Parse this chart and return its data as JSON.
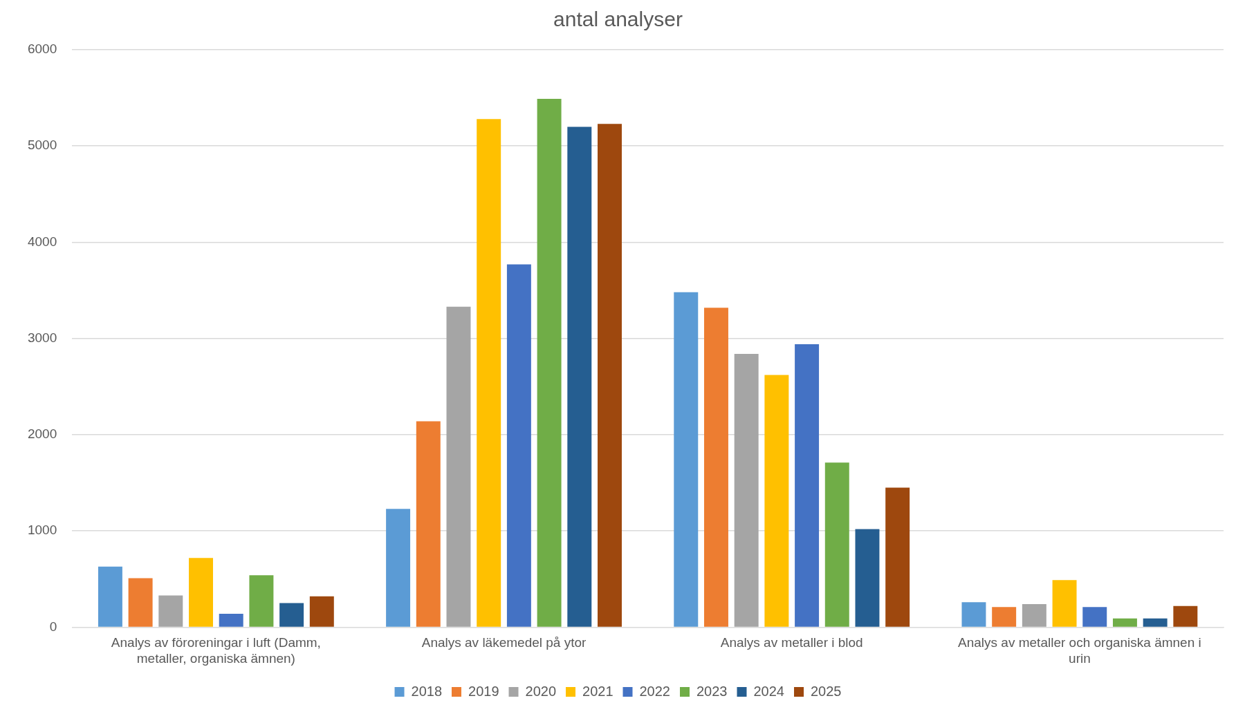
{
  "chart_data": {
    "type": "bar",
    "title": "antal analyser",
    "categories": [
      "Analys av föroreningar i luft (Damm, metaller, organiska ämnen)",
      "Analys av läkemedel på ytor",
      "Analys av metaller i blod",
      "Analys av metaller och organiska ämnen i urin"
    ],
    "series": [
      {
        "name": "2018",
        "color": "#5b9bd5",
        "values": [
          630,
          1230,
          3480,
          260
        ]
      },
      {
        "name": "2019",
        "color": "#ed7d31",
        "values": [
          510,
          2140,
          3320,
          210
        ]
      },
      {
        "name": "2020",
        "color": "#a5a5a5",
        "values": [
          330,
          3330,
          2840,
          240
        ]
      },
      {
        "name": "2021",
        "color": "#ffc000",
        "values": [
          720,
          5280,
          2620,
          490
        ]
      },
      {
        "name": "2022",
        "color": "#4472c4",
        "values": [
          140,
          3770,
          2940,
          210
        ]
      },
      {
        "name": "2023",
        "color": "#70ad47",
        "values": [
          540,
          5490,
          1710,
          90
        ]
      },
      {
        "name": "2024",
        "color": "#255e91",
        "values": [
          250,
          5200,
          1020,
          90
        ]
      },
      {
        "name": "2025",
        "color": "#9e480e",
        "values": [
          320,
          5230,
          1450,
          220
        ]
      }
    ],
    "ylim": [
      0,
      6000
    ],
    "yticks": [
      0,
      1000,
      2000,
      3000,
      4000,
      5000,
      6000
    ],
    "grid": "y",
    "legend": "bottom"
  }
}
